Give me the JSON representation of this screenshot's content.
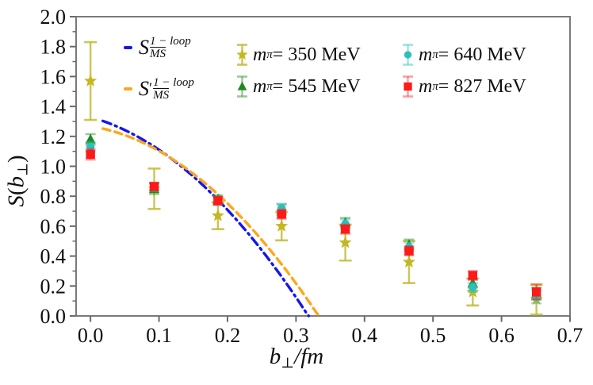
{
  "chart_data": {
    "type": "scatter",
    "title": "",
    "xlabel": "b⊥/fm",
    "ylabel": "S(b⊥)",
    "xlabel_parts": [
      {
        "t": "b",
        "it": true
      },
      {
        "t": "⊥",
        "sub": true
      },
      {
        "t": "/fm",
        "it": true
      }
    ],
    "ylabel_parts": [
      {
        "t": "S",
        "it": true
      },
      {
        "t": "("
      },
      {
        "t": "b",
        "it": true
      },
      {
        "t": "⊥",
        "sub": true
      },
      {
        "t": ")"
      }
    ],
    "xlim": [
      -0.021,
      0.7
    ],
    "ylim": [
      0.0,
      2.0
    ],
    "x_ticks": [
      0.0,
      0.1,
      0.2,
      0.3,
      0.4,
      0.5,
      0.6,
      0.7
    ],
    "x_tick_labels": [
      "0.0",
      "0.1",
      "0.2",
      "0.3",
      "0.4",
      "0.5",
      "0.6",
      "0.7"
    ],
    "y_ticks": [
      0.0,
      0.2,
      0.4,
      0.6,
      0.8,
      1.0,
      1.2,
      1.4,
      1.6,
      1.8,
      2.0
    ],
    "y_tick_labels": [
      "0.0",
      "0.2",
      "0.4",
      "0.6",
      "0.8",
      "1.0",
      "1.2",
      "1.4",
      "1.6",
      "1.8",
      "2.0"
    ],
    "y_minor_step": 0.1,
    "grid": false,
    "legend_position": "upper center, inside axes",
    "x": [
      0.0,
      0.093,
      0.186,
      0.279,
      0.372,
      0.465,
      0.558,
      0.651
    ],
    "series": [
      {
        "name": "mπ = 350 MeV",
        "marker": "star",
        "color": "#C4B821",
        "err_color": "rgba(193,182,42,0.8)",
        "y": [
          1.57,
          0.85,
          0.67,
          0.6,
          0.49,
          0.36,
          0.16,
          0.11
        ],
        "yerr": [
          0.26,
          0.135,
          0.09,
          0.095,
          0.12,
          0.14,
          0.09,
          0.1
        ]
      },
      {
        "name": "mπ = 545 MeV",
        "marker": "triangle",
        "color": "#1E8A1E",
        "err_color": "rgba(30,138,30,0.45)",
        "y": [
          1.18,
          0.85,
          0.78,
          0.71,
          0.625,
          0.475,
          0.22,
          0.15
        ],
        "yerr": [
          0.035,
          0.035,
          0.025,
          0.035,
          0.03,
          0.035,
          0.03,
          0.04
        ]
      },
      {
        "name": "mπ = 640 MeV",
        "marker": "circle",
        "color": "#2BC0BC",
        "err_color": "rgba(43,192,188,0.45)",
        "y": [
          1.13,
          0.86,
          0.77,
          0.72,
          0.615,
          0.46,
          0.19,
          0.13
        ],
        "yerr": [
          0.03,
          0.025,
          0.03,
          0.03,
          0.03,
          0.03,
          0.03,
          0.045
        ]
      },
      {
        "name": "mπ = 827 MeV",
        "marker": "square",
        "color": "#FC1A1A",
        "err_color": "rgba(252,26,26,0.42)",
        "y": [
          1.08,
          0.865,
          0.77,
          0.68,
          0.58,
          0.435,
          0.27,
          0.16
        ],
        "yerr": [
          0.035,
          0.025,
          0.025,
          0.03,
          0.03,
          0.03,
          0.03,
          0.05
        ]
      }
    ],
    "curves": [
      {
        "name": "S_MSbar^(1-loop)",
        "style": "dashdot",
        "color": "#1616EA",
        "poly": [
          1.329,
          -1.271,
          -9.15
        ],
        "b_start": 0.018,
        "b_zero": 0.3185
      },
      {
        "name": "S'_MSbar^(1-loop)",
        "style": "dashed",
        "color": "#FFA51C",
        "poly": [
          1.268,
          -0.729,
          -9.246
        ],
        "b_start": 0.018,
        "b_zero": 0.3345
      }
    ],
    "legend": {
      "entries": [
        {
          "kind": "curve",
          "ref": 0,
          "parts": [
            {
              "t": "S",
              "it": true
            },
            {
              "stack": {
                "sup": "1 − loop",
                "sub": "MS"
              }
            }
          ]
        },
        {
          "kind": "curve",
          "ref": 1,
          "parts": [
            {
              "t": "S",
              "it": true
            },
            {
              "t": "′",
              "prime": true
            },
            {
              "stack": {
                "sup": "1 − loop",
                "sub": "MS"
              }
            }
          ]
        },
        {
          "kind": "series",
          "ref": 0,
          "parts": [
            {
              "t": "m",
              "it": true
            },
            {
              "t": "π",
              "sub": true,
              "it": true
            },
            {
              "t": " = 350 MeV"
            }
          ]
        },
        {
          "kind": "series",
          "ref": 1,
          "parts": [
            {
              "t": "m",
              "it": true
            },
            {
              "t": "π",
              "sub": true,
              "it": true
            },
            {
              "t": " = 545 MeV"
            }
          ]
        },
        {
          "kind": "series",
          "ref": 2,
          "parts": [
            {
              "t": "m",
              "it": true
            },
            {
              "t": "π",
              "sub": true,
              "it": true
            },
            {
              "t": " = 640 MeV"
            }
          ]
        },
        {
          "kind": "series",
          "ref": 3,
          "parts": [
            {
              "t": "m",
              "it": true
            },
            {
              "t": "π",
              "sub": true,
              "it": true
            },
            {
              "t": " = 827 MeV"
            }
          ]
        }
      ]
    },
    "colors": {
      "spine": "#7a7a7a",
      "tick": "#6a6a6a",
      "tick_label": "#0f0f0f"
    }
  }
}
